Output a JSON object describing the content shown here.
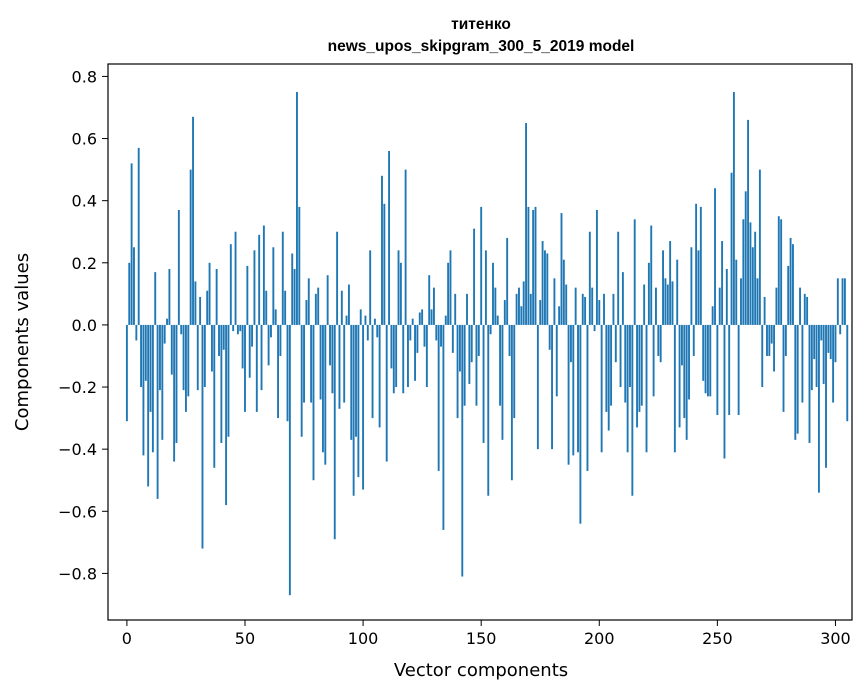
{
  "chart_data": {
    "type": "bar",
    "title": "титенко",
    "subtitle": "news_upos_skipgram_300_5_2019 model",
    "xlabel": "Vector components",
    "ylabel": "Components values",
    "xlim": [
      -8,
      307
    ],
    "ylim": [
      -0.95,
      0.84
    ],
    "xticks": [
      0,
      50,
      100,
      150,
      200,
      250,
      300
    ],
    "yticks": [
      -0.8,
      -0.6,
      -0.4,
      -0.2,
      0.0,
      0.2,
      0.4,
      0.6,
      0.8
    ],
    "ytick_labels": [
      "−0.8",
      "−0.6",
      "−0.4",
      "−0.2",
      "0.0",
      "0.2",
      "0.4",
      "0.6",
      "0.8"
    ],
    "bar_color": "#1f77b4",
    "grid": false,
    "legend": "none",
    "values": [
      -0.31,
      0.2,
      0.52,
      0.25,
      -0.05,
      0.57,
      -0.2,
      -0.42,
      -0.18,
      -0.52,
      -0.28,
      -0.41,
      0.17,
      -0.56,
      -0.21,
      -0.37,
      -0.06,
      0.02,
      0.18,
      -0.16,
      -0.44,
      -0.38,
      0.37,
      -0.03,
      -0.21,
      -0.28,
      -0.23,
      0.5,
      0.67,
      0.14,
      -0.21,
      0.09,
      -0.72,
      -0.2,
      0.11,
      0.2,
      -0.15,
      -0.46,
      0.18,
      -0.1,
      -0.38,
      -0.08,
      -0.58,
      -0.36,
      0.26,
      -0.02,
      0.3,
      -0.03,
      -0.02,
      -0.14,
      -0.28,
      0.19,
      -0.17,
      -0.07,
      0.24,
      -0.28,
      0.29,
      -0.21,
      0.32,
      0.11,
      -0.13,
      -0.04,
      0.25,
      0.05,
      -0.3,
      -0.1,
      0.3,
      0.11,
      -0.31,
      -0.87,
      0.23,
      0.18,
      0.75,
      0.38,
      -0.36,
      -0.25,
      0.08,
      0.15,
      -0.25,
      -0.5,
      0.1,
      0.12,
      -0.24,
      -0.41,
      -0.45,
      0.16,
      -0.13,
      -0.22,
      -0.69,
      0.3,
      -0.27,
      0.11,
      -0.25,
      0.03,
      0.13,
      -0.37,
      -0.55,
      -0.36,
      -0.49,
      0.05,
      -0.53,
      0.03,
      -0.05,
      0.24,
      -0.3,
      0.02,
      -0.04,
      -0.33,
      0.48,
      0.39,
      -0.44,
      0.56,
      -0.14,
      -0.22,
      -0.2,
      0.24,
      0.2,
      -0.22,
      0.5,
      -0.2,
      -0.05,
      0.02,
      -0.18,
      -0.09,
      0.04,
      0.05,
      -0.07,
      -0.2,
      0.16,
      0.05,
      0.12,
      -0.05,
      -0.47,
      -0.07,
      -0.66,
      0.03,
      0.2,
      0.24,
      -0.09,
      0.1,
      -0.3,
      -0.15,
      -0.81,
      -0.26,
      0.1,
      -0.19,
      -0.12,
      0.31,
      -0.26,
      -0.1,
      0.38,
      -0.38,
      0.24,
      -0.55,
      -0.03,
      0.2,
      0.12,
      0.03,
      -0.26,
      -0.37,
      0.08,
      0.28,
      -0.1,
      -0.5,
      -0.3,
      0.1,
      0.12,
      0.06,
      0.14,
      0.65,
      0.38,
      0.1,
      0.37,
      0.38,
      -0.4,
      0.08,
      0.27,
      0.24,
      0.23,
      -0.08,
      -0.4,
      0.15,
      -0.23,
      0.06,
      0.36,
      0.21,
      0.13,
      -0.45,
      -0.12,
      -0.42,
      0.12,
      -0.41,
      -0.64,
      0.1,
      0.09,
      -0.47,
      0.3,
      0.12,
      -0.02,
      0.37,
      0.08,
      -0.41,
      0.1,
      -0.28,
      -0.34,
      -0.26,
      0.1,
      -0.12,
      0.3,
      -0.2,
      0.17,
      -0.25,
      -0.41,
      -0.2,
      -0.55,
      0.34,
      -0.33,
      -0.28,
      -0.26,
      0.13,
      -0.41,
      0.2,
      0.32,
      -0.23,
      0.12,
      -0.1,
      -0.12,
      0.24,
      0.15,
      0.13,
      0.27,
      0.14,
      -0.41,
      0.21,
      -0.33,
      -0.13,
      -0.3,
      -0.37,
      -0.24,
      0.25,
      -0.1,
      0.39,
      0.24,
      0.38,
      -0.18,
      -0.22,
      -0.23,
      -0.23,
      0.06,
      0.44,
      -0.29,
      0.12,
      0.27,
      -0.43,
      0.18,
      -0.29,
      0.49,
      0.75,
      0.21,
      -0.29,
      0.15,
      0.34,
      0.43,
      0.66,
      0.33,
      0.25,
      0.3,
      0.15,
      0.5,
      -0.2,
      0.09,
      -0.1,
      -0.1,
      -0.06,
      -0.15,
      0.12,
      0.35,
      0.34,
      -0.28,
      -0.1,
      0.19,
      0.28,
      0.26,
      -0.37,
      -0.35,
      0.12,
      -0.25,
      0.1,
      0.09,
      -0.38,
      -0.21,
      -0.11,
      -0.2,
      -0.54,
      -0.05,
      -0.19,
      -0.46,
      -0.09,
      -0.11,
      -0.25,
      -0.12,
      0.15,
      -0.03,
      0.15,
      0.15,
      -0.31
    ]
  }
}
